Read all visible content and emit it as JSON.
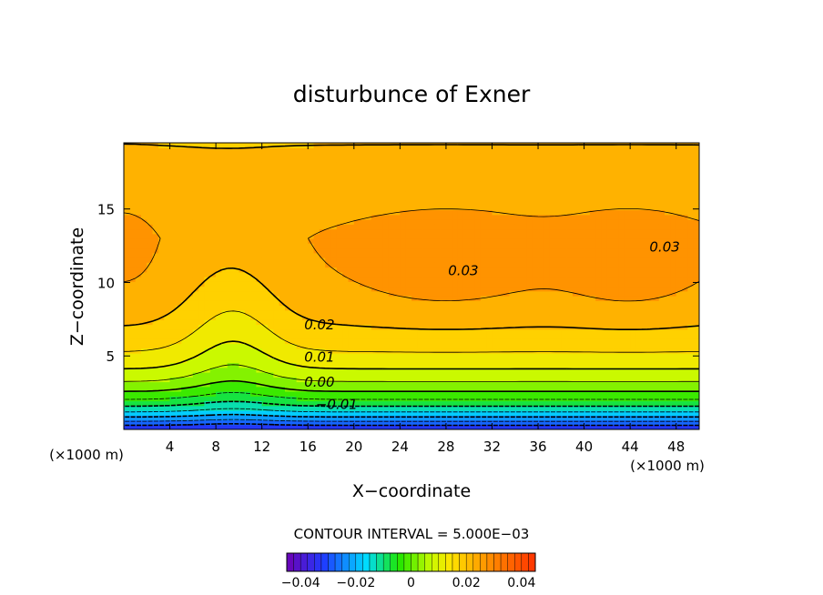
{
  "chart_data": {
    "type": "heatmap",
    "title": "disturbunce of Exner",
    "xlabel": "X−coordinate",
    "ylabel": "Z−coordinate",
    "x_unit_left": "(×1000 m)",
    "x_unit_right": "(×1000 m)",
    "xlim": [
      0,
      50
    ],
    "ylim": [
      0,
      19.5
    ],
    "xticks": [
      4,
      8,
      12,
      16,
      20,
      24,
      28,
      32,
      36,
      40,
      44,
      48
    ],
    "yticks": [
      5,
      10,
      15
    ],
    "contour_interval_text": "CONTOUR INTERVAL = 5.000E−03",
    "contour_interval": 0.005,
    "value_range": [
      -0.045,
      0.045
    ],
    "contour_labels": [
      {
        "text": "0.03",
        "x": 29.5,
        "z": 10.5
      },
      {
        "text": "0.03",
        "x": 47.0,
        "z": 12.1
      },
      {
        "text": "0.02",
        "x": 17.0,
        "z": 6.8
      },
      {
        "text": "0.01",
        "x": 17.0,
        "z": 4.6
      },
      {
        "text": "0.00",
        "x": 17.0,
        "z": 2.9
      },
      {
        "text": "−0.01",
        "x": 18.5,
        "z": 1.4
      }
    ],
    "colorbar": {
      "ticks": [
        {
          "value": -0.04,
          "label": "−0.04"
        },
        {
          "value": -0.02,
          "label": "−0.02"
        },
        {
          "value": 0,
          "label": "0"
        },
        {
          "value": 0.02,
          "label": "0.02"
        },
        {
          "value": 0.04,
          "label": "0.04"
        }
      ]
    }
  }
}
